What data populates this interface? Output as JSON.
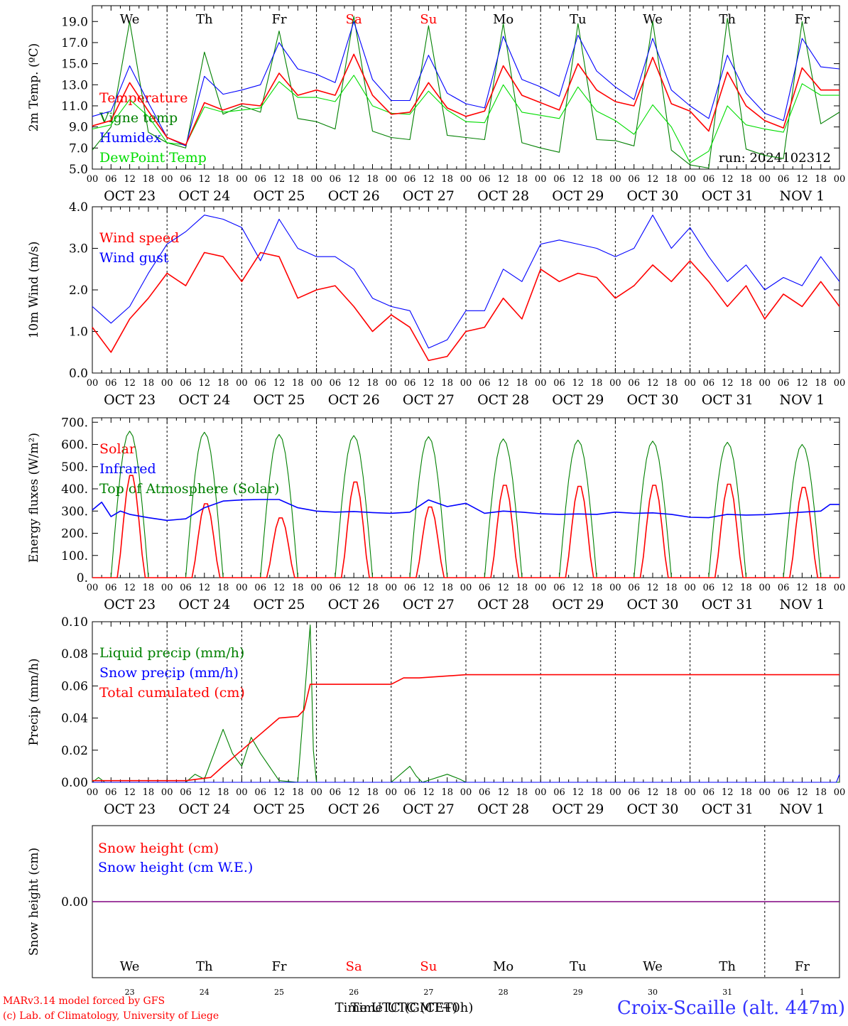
{
  "days": {
    "weekdays": [
      "We",
      "Th",
      "Fr",
      "Sa",
      "Su",
      "Mo",
      "Tu",
      "We",
      "Th",
      "Fr"
    ],
    "weekday_colors": [
      "#000000",
      "#000000",
      "#000000",
      "#ff0000",
      "#ff0000",
      "#000000",
      "#000000",
      "#000000",
      "#000000",
      "#000000"
    ],
    "dates": [
      "OCT 23",
      "OCT 24",
      "OCT 25",
      "OCT 26",
      "OCT 27",
      "OCT 28",
      "OCT 29",
      "OCT 30",
      "OCT 31",
      "NOV  1"
    ],
    "day_numbers": [
      "23",
      "24",
      "25",
      "26",
      "27",
      "28",
      "29",
      "30",
      "31",
      "1"
    ],
    "hour_ticks": [
      "00",
      "06",
      "12",
      "18"
    ],
    "final_tick": "00"
  },
  "run_label": "run: 2024102312",
  "footer": {
    "model_line": "MARv3.14 model forced by GFS",
    "copyright_line": "(c) Lab. of Climatology, University of Liege",
    "xlabel_a": "Time UTC (GMT+0h)",
    "xlabel_b": "Time UTC (CET)",
    "station": "Croix-Scaille (alt. 447m)"
  },
  "colors": {
    "red": "#ff0000",
    "blue": "#0000ff",
    "green": "#008000",
    "light_green": "#00dd00",
    "purple": "#800080",
    "station_blue": "#3333ff"
  },
  "chart_data": [
    {
      "type": "line",
      "ylabel": "2m Temp. (ºC)",
      "ylim": [
        5.0,
        20.5
      ],
      "yticks": [
        "5.0",
        "7.0",
        "9.0",
        "11.0",
        "13.0",
        "15.0",
        "17.0",
        "19.0"
      ],
      "x_hours": [
        0,
        6,
        12,
        18,
        24,
        30,
        36,
        42,
        48,
        54,
        60,
        66,
        72,
        78,
        84,
        90,
        96,
        102,
        108,
        114,
        120,
        126,
        132,
        138,
        144,
        150,
        156,
        162,
        168,
        174,
        180,
        186,
        192,
        198,
        204,
        210,
        216,
        222,
        228,
        234,
        240
      ],
      "series": [
        {
          "name": "Temperature",
          "color": "#ff0000",
          "values": [
            9.1,
            9.6,
            13.2,
            10.5,
            8.0,
            7.3,
            11.3,
            10.6,
            11.2,
            11.0,
            14.1,
            12.0,
            12.5,
            12.0,
            15.9,
            12.0,
            10.2,
            10.4,
            13.2,
            10.8,
            10.0,
            10.5,
            14.8,
            12.0,
            11.3,
            10.6,
            15.0,
            12.5,
            11.4,
            11.0,
            15.6,
            11.2,
            10.5,
            8.6,
            14.2,
            11.0,
            9.6,
            8.9,
            14.6,
            12.5,
            12.5
          ]
        },
        {
          "name": "Vigne temp",
          "color": "#008000",
          "values": [
            6.8,
            9.0,
            19.0,
            8.5,
            7.5,
            7.0,
            16.1,
            10.2,
            11.0,
            10.4,
            18.1,
            9.8,
            9.5,
            8.8,
            19.5,
            8.6,
            8.0,
            7.8,
            18.6,
            8.2,
            8.0,
            7.8,
            18.8,
            7.5,
            7.0,
            6.6,
            18.8,
            7.8,
            7.7,
            7.2,
            19.0,
            6.8,
            5.4,
            5.1,
            19.3,
            6.9,
            6.3,
            6.0,
            19.0,
            9.3,
            10.4
          ]
        },
        {
          "name": "Humidex",
          "color": "#0000ff",
          "values": [
            10.0,
            10.5,
            14.8,
            11.3,
            8.0,
            7.2,
            13.8,
            12.1,
            12.5,
            13.0,
            17.0,
            14.5,
            14.0,
            13.2,
            19.0,
            13.5,
            11.5,
            11.5,
            15.8,
            12.2,
            11.2,
            10.8,
            17.6,
            13.5,
            12.8,
            11.9,
            17.7,
            14.3,
            12.8,
            11.6,
            17.4,
            12.5,
            11.0,
            9.8,
            15.8,
            12.2,
            10.3,
            9.6,
            17.4,
            14.7,
            14.5
          ]
        },
        {
          "name": "DewPoint Temp",
          "color": "#00dd00",
          "values": [
            8.8,
            9.2,
            11.6,
            10.0,
            7.5,
            7.3,
            10.9,
            10.4,
            10.6,
            10.8,
            13.3,
            11.8,
            11.8,
            11.4,
            13.9,
            11.0,
            10.3,
            10.2,
            12.4,
            10.6,
            9.5,
            9.4,
            13.0,
            10.4,
            10.1,
            9.8,
            12.8,
            10.5,
            9.6,
            8.3,
            11.1,
            9.0,
            5.6,
            6.7,
            11.0,
            9.2,
            8.8,
            8.5,
            13.1,
            12.0,
            12.0
          ]
        }
      ]
    },
    {
      "type": "line",
      "ylabel": "10m Wind (m/s)",
      "ylim": [
        0.0,
        4.0
      ],
      "yticks": [
        "0.0",
        "1.0",
        "2.0",
        "3.0",
        "4.0"
      ],
      "x_hours": [
        0,
        6,
        12,
        18,
        24,
        30,
        36,
        42,
        48,
        54,
        60,
        66,
        72,
        78,
        84,
        90,
        96,
        102,
        108,
        114,
        120,
        126,
        132,
        138,
        144,
        150,
        156,
        162,
        168,
        174,
        180,
        186,
        192,
        198,
        204,
        210,
        216,
        222,
        228,
        234,
        240
      ],
      "series": [
        {
          "name": "Wind speed",
          "color": "#ff0000",
          "values": [
            1.1,
            0.5,
            1.3,
            1.8,
            2.4,
            2.1,
            2.9,
            2.8,
            2.2,
            2.9,
            2.8,
            1.8,
            2.0,
            2.1,
            1.6,
            1.0,
            1.4,
            1.1,
            0.3,
            0.4,
            1.0,
            1.1,
            1.8,
            1.3,
            2.5,
            2.2,
            2.4,
            2.3,
            1.8,
            2.1,
            2.6,
            2.2,
            2.7,
            2.2,
            1.6,
            2.1,
            1.3,
            1.9,
            1.6,
            2.2,
            1.6
          ]
        },
        {
          "name": "Wind gust",
          "color": "#0000ff",
          "values": [
            1.6,
            1.2,
            1.6,
            2.4,
            3.1,
            3.4,
            3.8,
            3.7,
            3.5,
            2.7,
            3.7,
            3.0,
            2.8,
            2.8,
            2.5,
            1.8,
            1.6,
            1.5,
            0.6,
            0.8,
            1.5,
            1.5,
            2.5,
            2.2,
            3.1,
            3.2,
            3.1,
            3.0,
            2.8,
            3.0,
            3.8,
            3.0,
            3.5,
            2.8,
            2.2,
            2.6,
            2.0,
            2.3,
            2.1,
            2.8,
            2.2
          ]
        }
      ]
    },
    {
      "type": "line",
      "ylabel": "Energy fluxes (W/m²)",
      "ylim": [
        0,
        720
      ],
      "yticks": [
        "0.",
        "100.",
        "200.",
        "300.",
        "400.",
        "500.",
        "600.",
        "700."
      ],
      "peaks": [
        {
          "solar": 470,
          "toa": 660
        },
        {
          "solar": 340,
          "toa": 655
        },
        {
          "solar": 275,
          "toa": 645
        },
        {
          "solar": 440,
          "toa": 640
        },
        {
          "solar": 325,
          "toa": 635
        },
        {
          "solar": 425,
          "toa": 625
        },
        {
          "solar": 420,
          "toa": 620
        },
        {
          "solar": 425,
          "toa": 615
        },
        {
          "solar": 430,
          "toa": 610
        },
        {
          "solar": 415,
          "toa": 600
        }
      ],
      "series": [
        {
          "name": "Solar",
          "color": "#ff0000"
        },
        {
          "name": "Infrared",
          "color": "#0000ff",
          "x_hours": [
            0,
            3,
            6,
            9,
            12,
            18,
            24,
            30,
            36,
            42,
            48,
            54,
            60,
            66,
            72,
            78,
            84,
            90,
            96,
            102,
            108,
            114,
            120,
            126,
            132,
            138,
            144,
            150,
            156,
            162,
            168,
            174,
            180,
            186,
            192,
            198,
            204,
            210,
            216,
            222,
            228,
            234,
            237,
            240
          ],
          "values": [
            305,
            340,
            275,
            300,
            285,
            270,
            258,
            265,
            315,
            345,
            350,
            352,
            352,
            315,
            300,
            295,
            298,
            293,
            290,
            295,
            350,
            320,
            335,
            290,
            300,
            295,
            288,
            285,
            287,
            285,
            295,
            290,
            292,
            285,
            272,
            270,
            285,
            282,
            284,
            290,
            295,
            300,
            330,
            330
          ]
        },
        {
          "name": "Top of Atmosphere (Solar)",
          "color": "#008000"
        }
      ]
    },
    {
      "type": "line",
      "ylabel": "Precip (mm/h)",
      "ylim": [
        0.0,
        0.1
      ],
      "yticks": [
        "0.00",
        "0.02",
        "0.04",
        "0.06",
        "0.08",
        "0.10"
      ],
      "series": [
        {
          "name": "Liquid precip (mm/h)",
          "color": "#008000",
          "x_hours": [
            0,
            2,
            4,
            30,
            33,
            36,
            42,
            45,
            48,
            51,
            54,
            60,
            66,
            70,
            71,
            72,
            73,
            96,
            102,
            104,
            106,
            114,
            118,
            120,
            240
          ],
          "values": [
            0,
            0.003,
            0,
            0,
            0.005,
            0.002,
            0.033,
            0.018,
            0.01,
            0.028,
            0.018,
            0.001,
            0,
            0.098,
            0.02,
            0.0,
            0,
            0,
            0.01,
            0.004,
            0,
            0.005,
            0.002,
            0,
            0
          ]
        },
        {
          "name": "Snow precip (mm/h)",
          "color": "#0000ff",
          "x_hours": [
            0,
            239,
            240
          ],
          "values": [
            0,
            0,
            0.005
          ]
        },
        {
          "name": "Total cumulated (cm)",
          "color": "#ff0000",
          "x_hours": [
            0,
            30,
            38,
            42,
            48,
            54,
            60,
            66,
            68,
            70,
            72,
            96,
            100,
            105,
            120,
            126,
            240
          ],
          "values": [
            0.001,
            0.001,
            0.003,
            0.01,
            0.02,
            0.03,
            0.04,
            0.041,
            0.045,
            0.061,
            0.061,
            0.061,
            0.065,
            0.065,
            0.067,
            0.067,
            0.067
          ]
        }
      ]
    },
    {
      "type": "line",
      "ylabel": "Snow height (cm)",
      "ylim": [
        -1,
        1
      ],
      "yticks": [
        "0.00"
      ],
      "series": [
        {
          "name": "Snow height (cm)",
          "color": "#ff0000",
          "values": [
            0,
            0
          ]
        },
        {
          "name": "Snow height (cm W.E.)",
          "color": "#0000ff",
          "values": [
            0,
            0
          ]
        }
      ]
    }
  ]
}
